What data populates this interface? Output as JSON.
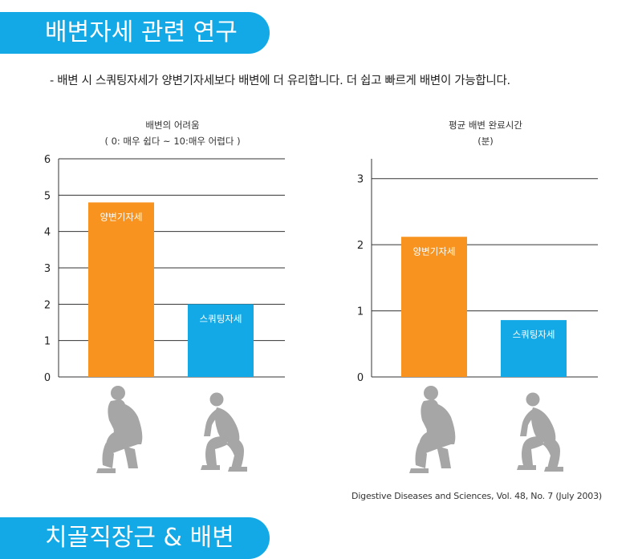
{
  "sections": {
    "banner1_title": "배변자세 관련 연구",
    "banner2_title": "치골직장근 & 배변"
  },
  "summary": "- 배변 시 스쿼팅자세가 양변기자세보다 배변에 더 유리합니다. 더 쉽고 빠르게 배변이 가능합니다.",
  "citation": "Digestive Diseases and Sciences, Vol. 48, No. 7 (July 2003)",
  "colors": {
    "accent": "#12a9e6",
    "toilet": "#f7931e",
    "squat": "#12a9e6",
    "figure": "#a6a6a6"
  },
  "icons": [
    "sitting-person-icon",
    "squatting-person-icon"
  ],
  "chart_data": [
    {
      "type": "bar",
      "title": "배변의 어려움",
      "subtitle": "( 0: 매우 쉽다 ~ 10:매우 어렵다 )",
      "categories": [
        "양변기자세",
        "스쿼팅자세"
      ],
      "values": [
        4.8,
        2.0
      ],
      "ylim": [
        0,
        6
      ],
      "yticks": [
        "0",
        "1",
        "2",
        "3",
        "4",
        "5",
        "6"
      ],
      "grid": true,
      "bar_colors": [
        "#f7931e",
        "#12a9e6"
      ]
    },
    {
      "type": "bar",
      "title": "평균 배변 완료시간",
      "subtitle": "(분)",
      "categories": [
        "양변기자세",
        "스쿼팅자세"
      ],
      "values": [
        2.12,
        0.86
      ],
      "ylim": [
        0,
        3.3
      ],
      "yticks": [
        "0",
        "1",
        "2",
        "3"
      ],
      "grid": true,
      "bar_colors": [
        "#f7931e",
        "#12a9e6"
      ]
    }
  ]
}
